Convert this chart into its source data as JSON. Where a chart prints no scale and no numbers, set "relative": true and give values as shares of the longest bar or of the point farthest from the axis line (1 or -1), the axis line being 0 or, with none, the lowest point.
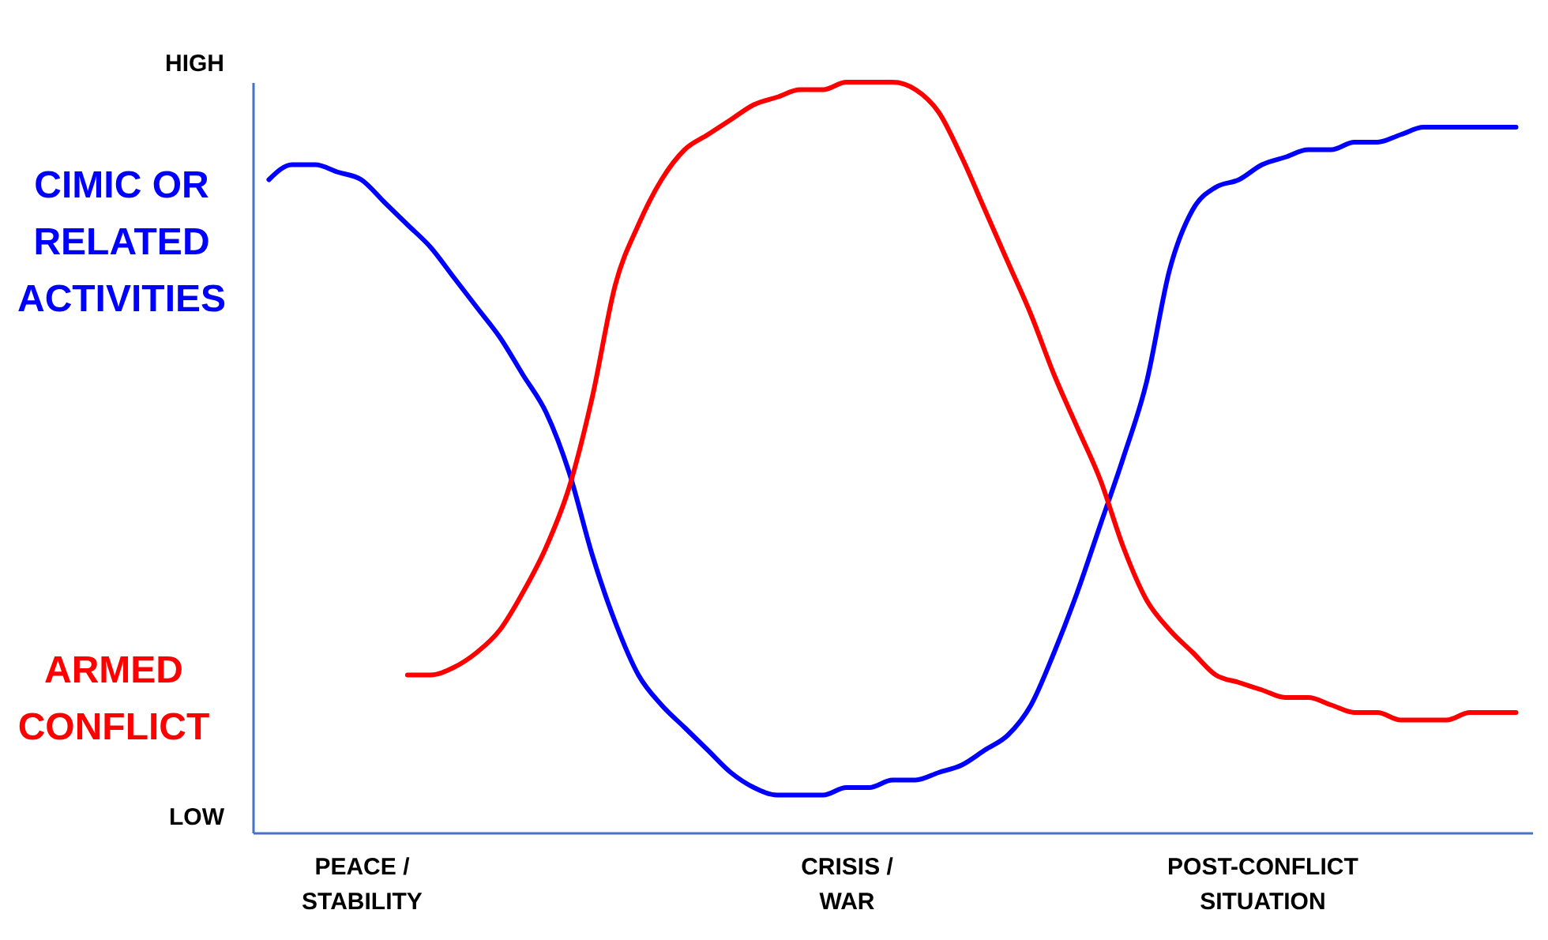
{
  "chart_data": {
    "type": "line",
    "relative": true,
    "legend": "left",
    "categories": [
      null,
      null,
      null,
      null,
      "PEACE / STABILITY",
      null,
      null,
      null,
      null,
      null,
      null,
      null,
      null,
      null,
      null,
      null,
      null,
      null,
      null,
      null,
      null,
      null,
      null,
      null,
      null,
      "CRISIS / WAR",
      null,
      null,
      null,
      null,
      null,
      null,
      null,
      null,
      null,
      null,
      null,
      null,
      null,
      null,
      null,
      null,
      null,
      "POST-CONFLICT SITUATION",
      null,
      null,
      null,
      null,
      null,
      null,
      null,
      null,
      null,
      null,
      null
    ],
    "series": [
      {
        "name": "CIMIC OR RELATED ACTIVITIES",
        "color": "#0000ff",
        "values": [
          0.87,
          0.89,
          0.89,
          0.88,
          0.87,
          0.84,
          0.81,
          0.78,
          0.74,
          0.7,
          0.66,
          0.61,
          0.56,
          0.48,
          0.37,
          0.28,
          0.21,
          0.17,
          0.14,
          0.11,
          0.08,
          0.06,
          0.05,
          0.05,
          0.05,
          0.06,
          0.06,
          0.07,
          0.07,
          0.08,
          0.09,
          0.11,
          0.13,
          0.17,
          0.24,
          0.32,
          0.41,
          0.5,
          0.6,
          0.75,
          0.83,
          0.86,
          0.87,
          0.89,
          0.9,
          0.91,
          0.91,
          0.92,
          0.92,
          0.93,
          0.94,
          0.94,
          0.94,
          0.94,
          0.94
        ]
      },
      {
        "name": "ARMED CONFLICT",
        "color": "#ff0000",
        "values": [
          null,
          null,
          null,
          null,
          null,
          null,
          0.21,
          0.21,
          0.22,
          0.24,
          0.27,
          0.32,
          0.38,
          0.46,
          0.58,
          0.73,
          0.81,
          0.87,
          0.91,
          0.93,
          0.95,
          0.97,
          0.98,
          0.99,
          0.99,
          1.0,
          1.0,
          1.0,
          0.99,
          0.96,
          0.9,
          0.83,
          0.76,
          0.69,
          0.61,
          0.54,
          0.47,
          0.38,
          0.31,
          0.27,
          0.24,
          0.21,
          0.2,
          0.19,
          0.18,
          0.18,
          0.17,
          0.16,
          0.16,
          0.15,
          0.15,
          0.15,
          0.16,
          0.16,
          0.16
        ]
      }
    ],
    "annotations": [
      "HIGH",
      "LOW"
    ]
  }
}
